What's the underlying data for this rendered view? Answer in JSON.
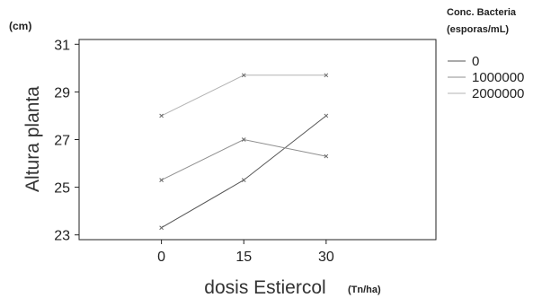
{
  "chart_data": {
    "type": "line",
    "title": "",
    "xlabel": "dosis Estiercol",
    "xlabel_unit": "(Tn/ha)",
    "ylabel": "Altura planta",
    "ylabel_unit": "(cm)",
    "x": [
      0,
      15,
      30
    ],
    "x_tick_labels": [
      "0",
      "15",
      "30"
    ],
    "xlim": [
      -15,
      50
    ],
    "ylim": [
      22.8,
      31.2
    ],
    "y_ticks": [
      23,
      25,
      27,
      29,
      31
    ],
    "y_tick_labels": [
      "23",
      "25",
      "27",
      "29",
      "31"
    ],
    "legend_title_line1": "Conc. Bacteria",
    "legend_title_line2": "(esporas/mL)",
    "legend_position": "right",
    "grid": false,
    "series": [
      {
        "name": "0",
        "values": [
          23.3,
          25.3,
          28.0
        ],
        "color": "#555555"
      },
      {
        "name": "1000000",
        "values": [
          25.3,
          27.0,
          26.3
        ],
        "color": "#8f8f8f"
      },
      {
        "name": "2000000",
        "values": [
          28.0,
          29.7,
          29.7
        ],
        "color": "#b3b3b3"
      }
    ]
  }
}
